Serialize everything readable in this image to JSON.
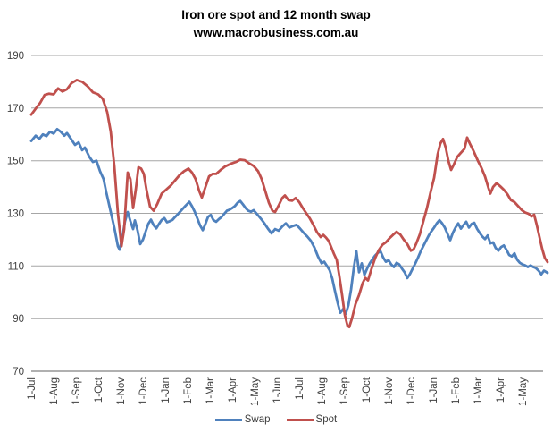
{
  "title": "Iron ore spot and 12 month swap",
  "subtitle": "www.macrobusiness.com.au",
  "colors": {
    "background": "#FFFFFF",
    "gridline": "#A6A6A6",
    "axis": "#808080",
    "tick_text": "#3F3F3F",
    "title_text": "#000000",
    "swap_blue": "#4F81BD",
    "spot_red": "#C0504D"
  },
  "legend": {
    "items": [
      "Swap",
      "Spot"
    ],
    "position": "bottom-center"
  },
  "chart_data": {
    "type": "line",
    "title": "Iron ore spot and 12 month swap",
    "subtitle": "www.macrobusiness.com.au",
    "xlabel": "",
    "ylabel": "",
    "x_unit": "months since 1-Jul-2011",
    "xlim": [
      0,
      23.2
    ],
    "ylim": [
      70,
      190
    ],
    "y_ticks": [
      190,
      170,
      150,
      130,
      110,
      90,
      70
    ],
    "x_tick_labels": [
      "1-Jul",
      "1-Aug",
      "1-Sep",
      "1-Oct",
      "1-Nov",
      "1-Dec",
      "1-Jan",
      "1-Feb",
      "1-Mar",
      "1-Apr",
      "1-May",
      "1-Jun",
      "1-Jul",
      "1-Aug",
      "1-Sep",
      "1-Oct",
      "1-Nov",
      "1-Dec",
      "1-Jan",
      "1-Feb",
      "1-Mar",
      "1-Apr",
      "1-May"
    ],
    "grid": "horizontal",
    "legend_position": "bottom-center",
    "series": [
      {
        "name": "Swap",
        "color": "#4F81BD",
        "x": [
          0.0,
          0.2,
          0.36,
          0.52,
          0.68,
          0.84,
          1.0,
          1.16,
          1.32,
          1.48,
          1.6,
          1.8,
          1.96,
          2.12,
          2.28,
          2.4,
          2.6,
          2.76,
          2.92,
          3.08,
          3.24,
          3.36,
          3.48,
          3.6,
          3.72,
          3.8,
          3.88,
          3.96,
          4.08,
          4.2,
          4.32,
          4.44,
          4.56,
          4.64,
          4.76,
          4.88,
          5.0,
          5.12,
          5.24,
          5.36,
          5.48,
          5.6,
          5.72,
          5.84,
          5.96,
          6.08,
          6.2,
          6.32,
          6.44,
          6.6,
          6.76,
          6.92,
          7.08,
          7.2,
          7.32,
          7.44,
          7.56,
          7.68,
          7.8,
          7.92,
          8.04,
          8.16,
          8.28,
          8.4,
          8.52,
          8.64,
          8.76,
          8.88,
          9.0,
          9.12,
          9.24,
          9.36,
          9.48,
          9.6,
          9.72,
          9.84,
          9.96,
          10.08,
          10.2,
          10.32,
          10.44,
          10.6,
          10.76,
          10.92,
          11.08,
          11.24,
          11.4,
          11.56,
          11.72,
          11.88,
          12.04,
          12.2,
          12.36,
          12.52,
          12.68,
          12.84,
          13.0,
          13.12,
          13.24,
          13.36,
          13.48,
          13.6,
          13.72,
          13.84,
          13.96,
          14.08,
          14.2,
          14.32,
          14.44,
          14.56,
          14.68,
          14.8,
          14.92,
          15.04,
          15.16,
          15.28,
          15.4,
          15.52,
          15.64,
          15.76,
          15.88,
          16.0,
          16.12,
          16.24,
          16.36,
          16.48,
          16.6,
          16.72,
          16.84,
          16.96,
          17.08,
          17.2,
          17.32,
          17.44,
          17.56,
          17.68,
          17.8,
          17.92,
          18.04,
          18.16,
          18.28,
          18.4,
          18.52,
          18.64,
          18.76,
          18.88,
          19.0,
          19.12,
          19.24,
          19.36,
          19.48,
          19.6,
          19.72,
          19.84,
          19.96,
          20.08,
          20.2,
          20.32,
          20.44,
          20.56,
          20.68,
          20.8,
          20.92,
          21.04,
          21.16,
          21.28,
          21.4,
          21.52,
          21.64,
          21.76,
          21.88,
          22.0,
          22.12,
          22.24,
          22.36,
          22.48,
          22.6,
          22.72,
          22.84,
          22.96,
          23.12
        ],
        "y": [
          157.5,
          159.5,
          158.3,
          160,
          159.3,
          161,
          160.3,
          162,
          161,
          159.5,
          160.5,
          158,
          156,
          157,
          154,
          155,
          151.5,
          149.5,
          150,
          146,
          143,
          138,
          133.5,
          129,
          124.5,
          121,
          117.5,
          116.2,
          121,
          127,
          130.5,
          127,
          124,
          127.3,
          123.5,
          118.3,
          120,
          123,
          126,
          127.6,
          125.5,
          124.3,
          126,
          127.5,
          128.2,
          126.6,
          127,
          127.5,
          128.6,
          130,
          131.5,
          133,
          134.4,
          132.7,
          130.6,
          128,
          125.4,
          123.6,
          126,
          128.7,
          129.4,
          127.4,
          126.8,
          127.8,
          128.6,
          129.8,
          131,
          131.4,
          132,
          132.8,
          134,
          134.7,
          133.4,
          132,
          131,
          130.6,
          131.2,
          130,
          128.8,
          127.6,
          126.2,
          124.2,
          122.4,
          124,
          123.4,
          125,
          126.2,
          124.6,
          125.2,
          125.6,
          124.2,
          122.6,
          121.2,
          119.6,
          117,
          113.6,
          111,
          111.6,
          110,
          108.4,
          105.2,
          100.5,
          96,
          92.2,
          93.6,
          91.8,
          95,
          101,
          109,
          115.6,
          107.6,
          111,
          106.6,
          109,
          111,
          112.6,
          114,
          115,
          115.6,
          113.2,
          111.6,
          112.2,
          110.6,
          109.6,
          111.2,
          110.6,
          109,
          107.6,
          105.4,
          107,
          109,
          111,
          113.2,
          115.6,
          117.6,
          119.6,
          121.6,
          123.2,
          124.6,
          126.2,
          127.4,
          126.2,
          124.6,
          122.2,
          119.8,
          122.6,
          124.6,
          126.2,
          124.2,
          125.6,
          126.8,
          124.6,
          126,
          126.4,
          124.2,
          122.6,
          121.2,
          120.2,
          121.6,
          118.6,
          119,
          116.8,
          115.8,
          117.2,
          117.8,
          116.2,
          114.2,
          113.6,
          114.8,
          112.4,
          111.2,
          110.6,
          110.2,
          109.6,
          110.2,
          109.6,
          109.2,
          108.2,
          106.8,
          108.2,
          107.4
        ]
      },
      {
        "name": "Spot",
        "color": "#C0504D",
        "x": [
          0.0,
          0.2,
          0.4,
          0.6,
          0.8,
          1.0,
          1.2,
          1.4,
          1.6,
          1.8,
          2.04,
          2.28,
          2.52,
          2.76,
          3.0,
          3.2,
          3.4,
          3.56,
          3.72,
          3.88,
          4.04,
          4.16,
          4.32,
          4.44,
          4.56,
          4.68,
          4.8,
          4.92,
          5.04,
          5.16,
          5.32,
          5.48,
          5.64,
          5.84,
          6.04,
          6.24,
          6.44,
          6.64,
          6.84,
          7.04,
          7.2,
          7.36,
          7.52,
          7.64,
          7.8,
          7.96,
          8.12,
          8.28,
          8.48,
          8.68,
          8.92,
          9.16,
          9.36,
          9.56,
          9.76,
          9.96,
          10.16,
          10.32,
          10.48,
          10.64,
          10.8,
          10.92,
          11.08,
          11.24,
          11.36,
          11.52,
          11.68,
          11.84,
          12.0,
          12.16,
          12.32,
          12.48,
          12.64,
          12.8,
          12.96,
          13.08,
          13.2,
          13.32,
          13.44,
          13.56,
          13.68,
          13.8,
          13.92,
          14.04,
          14.16,
          14.24,
          14.36,
          14.52,
          14.68,
          14.84,
          14.96,
          15.08,
          15.24,
          15.4,
          15.56,
          15.72,
          15.88,
          16.04,
          16.2,
          16.36,
          16.52,
          16.68,
          16.84,
          17.0,
          17.12,
          17.24,
          17.4,
          17.56,
          17.72,
          17.88,
          18.04,
          18.2,
          18.32,
          18.44,
          18.56,
          18.68,
          18.8,
          18.92,
          19.08,
          19.24,
          19.4,
          19.52,
          19.64,
          19.8,
          20.0,
          20.16,
          20.32,
          20.48,
          20.56,
          20.68,
          20.84,
          21.0,
          21.16,
          21.32,
          21.48,
          21.64,
          21.8,
          21.96,
          22.12,
          22.28,
          22.4,
          22.52,
          22.64,
          22.76,
          22.88,
          23.0,
          23.12
        ],
        "y": [
          167.5,
          169.8,
          172,
          175,
          175.5,
          175.2,
          177.5,
          176.3,
          177.2,
          179.5,
          180.7,
          180,
          178.3,
          176,
          175.2,
          173.5,
          168.5,
          161,
          148,
          130,
          117.5,
          124,
          145.5,
          143,
          132,
          139,
          147.5,
          147,
          145,
          139,
          132.5,
          131,
          133.5,
          137.5,
          139,
          140.5,
          142.5,
          144.5,
          146,
          147,
          145.5,
          143,
          138.5,
          136,
          140,
          144,
          145,
          145,
          146.5,
          147.8,
          148.8,
          149.5,
          150.4,
          150.2,
          149,
          148,
          146,
          143,
          138.5,
          134,
          131,
          130.5,
          133,
          135.8,
          136.8,
          135,
          134.8,
          135.8,
          134.3,
          132,
          130,
          128,
          125.5,
          122.8,
          121,
          121.8,
          120.8,
          119.5,
          117,
          114.5,
          112.3,
          106,
          99,
          91.5,
          87.3,
          86.8,
          90,
          95.5,
          99,
          103.5,
          105.5,
          104.5,
          109,
          113,
          116,
          118,
          119,
          120.5,
          121.8,
          123,
          122,
          120,
          118.3,
          115.8,
          116.3,
          118.5,
          122,
          127,
          132,
          138,
          143.5,
          152.5,
          156.5,
          158.3,
          155,
          150,
          146.5,
          148.5,
          151.5,
          153,
          154.5,
          158.8,
          156.5,
          153.8,
          150,
          147.3,
          144,
          139.5,
          137.5,
          140,
          141.5,
          140.3,
          139,
          137.3,
          135,
          134.3,
          132.8,
          131.3,
          130.3,
          129.8,
          128.8,
          129.5,
          125.5,
          121,
          116.5,
          113,
          111.5
        ]
      }
    ]
  }
}
